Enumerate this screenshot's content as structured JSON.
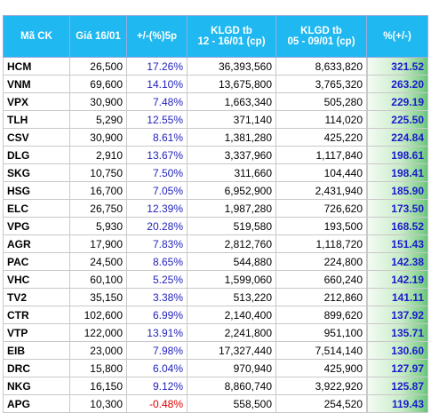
{
  "table": {
    "header": [
      "Mã CK",
      "Giá 16/01",
      "+/-(%)5p",
      "KLGD tb\n12 - 16/01 (cp)",
      "KLGD tb\n05 - 09/01 (cp)",
      "%(+/-)"
    ],
    "rows": [
      [
        "HCM",
        "26,500",
        "17.26%",
        "36,393,560",
        "8,633,820",
        "321.52"
      ],
      [
        "VNM",
        "69,600",
        "14.10%",
        "13,675,800",
        "3,765,320",
        "263.20"
      ],
      [
        "VPX",
        "30,900",
        "7.48%",
        "1,663,340",
        "505,280",
        "229.19"
      ],
      [
        "TLH",
        "5,290",
        "12.55%",
        "371,140",
        "114,020",
        "225.50"
      ],
      [
        "CSV",
        "30,900",
        "8.61%",
        "1,381,280",
        "425,220",
        "224.84"
      ],
      [
        "DLG",
        "2,910",
        "13.67%",
        "3,337,960",
        "1,117,840",
        "198.61"
      ],
      [
        "SKG",
        "10,750",
        "7.50%",
        "311,660",
        "104,440",
        "198.41"
      ],
      [
        "HSG",
        "16,700",
        "7.05%",
        "6,952,900",
        "2,431,940",
        "185.90"
      ],
      [
        "ELC",
        "26,750",
        "12.39%",
        "1,987,280",
        "726,620",
        "173.50"
      ],
      [
        "VPG",
        "5,930",
        "20.28%",
        "519,580",
        "193,500",
        "168.52"
      ],
      [
        "AGR",
        "17,900",
        "7.83%",
        "2,812,760",
        "1,118,720",
        "151.43"
      ],
      [
        "PAC",
        "24,500",
        "8.65%",
        "544,880",
        "224,800",
        "142.38"
      ],
      [
        "VHC",
        "60,100",
        "5.25%",
        "1,599,060",
        "660,240",
        "142.19"
      ],
      [
        "TV2",
        "35,150",
        "3.38%",
        "513,220",
        "212,860",
        "141.11"
      ],
      [
        "CTR",
        "102,600",
        "6.99%",
        "2,140,400",
        "899,620",
        "137.92"
      ],
      [
        "VTP",
        "122,000",
        "13.91%",
        "2,241,800",
        "951,100",
        "135.71"
      ],
      [
        "EIB",
        "23,000",
        "7.98%",
        "17,327,440",
        "7,514,140",
        "130.60"
      ],
      [
        "DRC",
        "15,800",
        "6.04%",
        "970,940",
        "425,900",
        "127.97"
      ],
      [
        "NKG",
        "16,150",
        "9.12%",
        "8,860,740",
        "3,922,920",
        "125.87"
      ],
      [
        "APG",
        "10,300",
        "-0.48%",
        "558,500",
        "254,520",
        "119.43"
      ]
    ]
  }
}
